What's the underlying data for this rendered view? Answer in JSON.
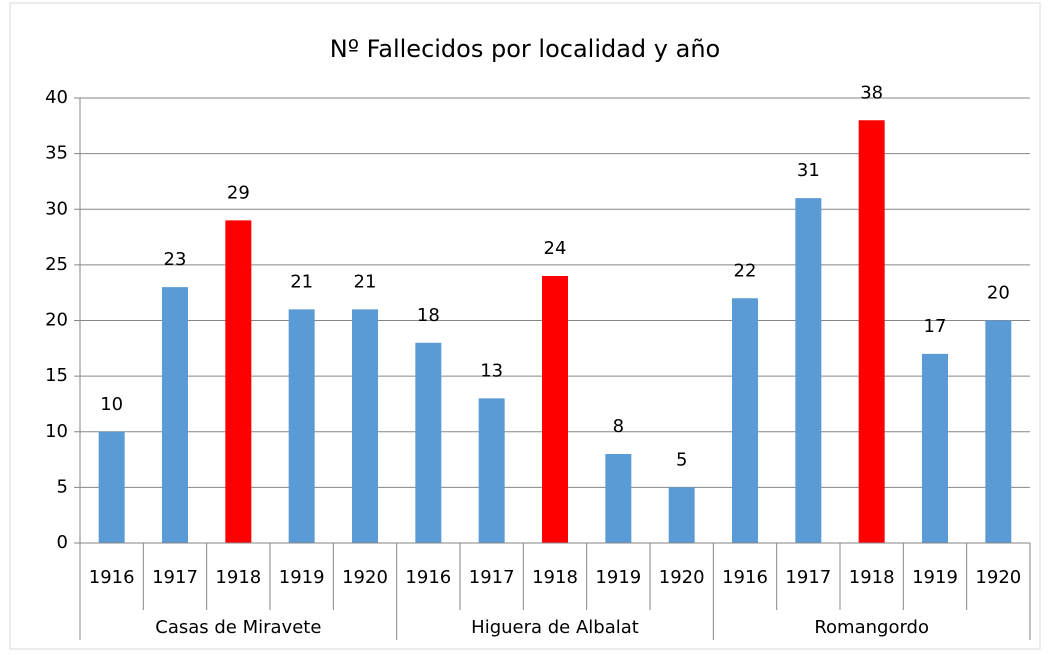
{
  "chart_data": {
    "type": "bar",
    "title": "Nº Fallecidos por localidad y año",
    "categories": [
      "1916",
      "1917",
      "1918",
      "1919",
      "1920",
      "1916",
      "1917",
      "1918",
      "1919",
      "1920",
      "1916",
      "1917",
      "1918",
      "1919",
      "1920"
    ],
    "groups": [
      "Casas de Miravete",
      "Higuera de Albalat",
      "Romangordo"
    ],
    "values": [
      10,
      23,
      29,
      21,
      21,
      18,
      13,
      24,
      8,
      5,
      22,
      31,
      38,
      17,
      20
    ],
    "colors": [
      "#5b9bd5",
      "#5b9bd5",
      "#ff0000",
      "#5b9bd5",
      "#5b9bd5",
      "#5b9bd5",
      "#5b9bd5",
      "#ff0000",
      "#5b9bd5",
      "#5b9bd5",
      "#5b9bd5",
      "#5b9bd5",
      "#ff0000",
      "#5b9bd5",
      "#5b9bd5"
    ],
    "ylim": [
      0,
      40
    ],
    "yticks": [
      0,
      5,
      10,
      15,
      20,
      25,
      30,
      35,
      40
    ],
    "grid": true
  }
}
